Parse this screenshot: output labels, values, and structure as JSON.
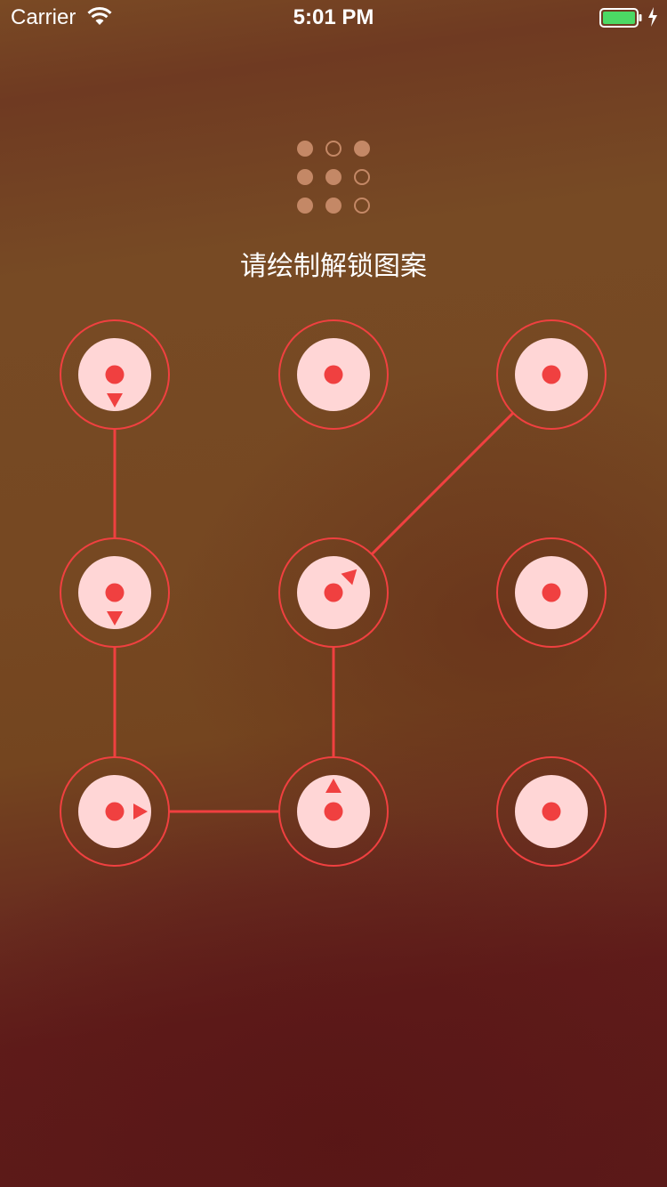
{
  "status_bar": {
    "carrier": "Carrier",
    "time": "5:01 PM",
    "wifi_icon": "wifi-icon",
    "battery_icon": "battery-icon",
    "battery_color": "#4cd964"
  },
  "preview": {
    "grid": [
      [
        true,
        false,
        true
      ],
      [
        true,
        true,
        false
      ],
      [
        true,
        true,
        false
      ]
    ],
    "on_color": "#c48866"
  },
  "prompt": "请绘制解锁图案",
  "pattern": {
    "columns": 3,
    "rows": 3,
    "accent_color": "#f04040",
    "inner_fill": "#ffd6d6",
    "path": [
      0,
      3,
      6,
      7,
      4,
      2
    ],
    "arrows": [
      {
        "node": 0,
        "direction": "down"
      },
      {
        "node": 3,
        "direction": "down"
      },
      {
        "node": 6,
        "direction": "right"
      },
      {
        "node": 7,
        "direction": "up"
      },
      {
        "node": 4,
        "direction": "up-right"
      }
    ]
  }
}
